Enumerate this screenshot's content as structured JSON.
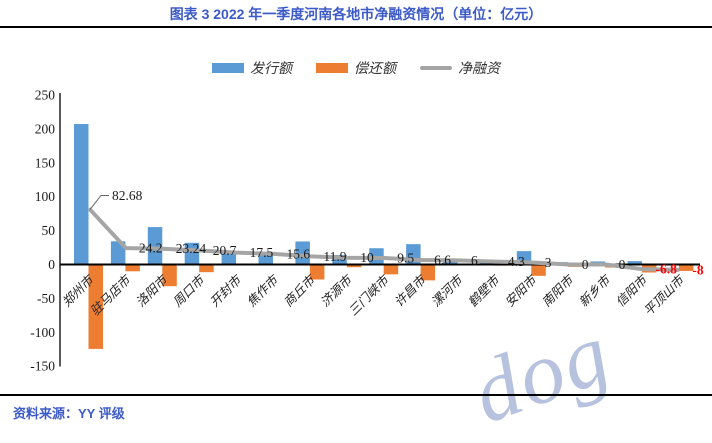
{
  "page": {
    "title": "图表 3 2022 年一季度河南各地市净融资情况（单位：亿元）",
    "source": "资料来源：YY 评级",
    "watermark": "dog",
    "colors": {
      "title_blue": "#3D5BC8",
      "issuance_blue": "#5B9BD5",
      "repayment_orange": "#ED7D31",
      "net_gray": "#A5A5A5",
      "negative_label_red": "#FF0000",
      "axis_black": "#000000",
      "label_black": "#1A1A1A",
      "watermark_blue": "#B7C2DE"
    }
  },
  "chart_data": {
    "type": "bar",
    "title": "2022 年一季度河南各地市净融资情况",
    "unit": "亿元",
    "grid": false,
    "legend_position": "top",
    "categories": [
      "郑州市",
      "驻马店市",
      "洛阳市",
      "周口市",
      "开封市",
      "焦作市",
      "商丘市",
      "济源市",
      "三门峡市",
      "许昌市",
      "漯河市",
      "鹤壁市",
      "安阳市",
      "南阳市",
      "新乡市",
      "信阳市",
      "平顶山市"
    ],
    "series": [
      {
        "name": "发行额",
        "type": "bar",
        "color": "#5B9BD5",
        "values": [
          207.2,
          34.2,
          55.2,
          32,
          17.5,
          16.6,
          34,
          14,
          24,
          30,
          7,
          6,
          19.7,
          3.5,
          4.5,
          5,
          1.5
        ]
      },
      {
        "name": "偿还额",
        "type": "bar",
        "color": "#ED7D31",
        "values": [
          -124.5,
          -10,
          -32,
          -11.3,
          0,
          -1,
          -22.1,
          -4,
          -14.5,
          -23.4,
          -1,
          -1.7,
          -16.7,
          -3.5,
          -4.5,
          -11.8,
          -9.5
        ]
      },
      {
        "name": "净融资",
        "type": "line",
        "color": "#A5A5A5",
        "values": [
          82.68,
          24.2,
          23.24,
          20.7,
          17.5,
          15.6,
          11.9,
          10,
          9.5,
          6.6,
          6,
          4.3,
          3,
          0,
          0,
          -6.8,
          -8
        ],
        "labels": [
          "82.68",
          "24.2",
          "23.24",
          "20.7",
          "17.5",
          "15.6",
          "11.9",
          "10",
          "9.5",
          "6.6",
          "6",
          "4.3",
          "3",
          "0",
          "0",
          "-6.8",
          "-8"
        ]
      }
    ],
    "ylim": [
      -150,
      250
    ],
    "yticks": [
      250,
      200,
      150,
      100,
      50,
      0,
      -50,
      -100,
      -150
    ],
    "xlabel": "",
    "ylabel": ""
  }
}
